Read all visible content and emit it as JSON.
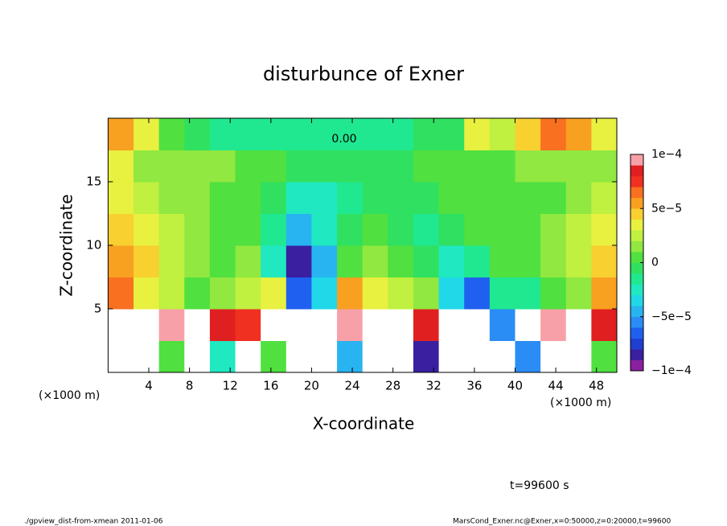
{
  "chart_data": {
    "type": "contour",
    "title": "disturbunce of Exner",
    "x_label": "X-coordinate",
    "y_label": "Z-coordinate",
    "x_unit": "(×1000 m)",
    "time_label": "t=99600 s",
    "footer_left": "./gpview_dist-from-xmean  2011-01-06",
    "footer_right": "MarsCond_Exner.nc@Exner,x=0:50000,z=0:20000,t=99600",
    "contour_label": "0.00",
    "xlim": [
      0,
      50
    ],
    "ylim": [
      0,
      20
    ],
    "xticks": [
      4,
      8,
      12,
      16,
      20,
      24,
      28,
      32,
      36,
      40,
      44,
      48
    ],
    "yticks": [
      5,
      10,
      15
    ],
    "z": [
      [
        0.0002,
        0.0002,
        0,
        0.0002,
        -3e-05,
        0.0002,
        0,
        0.0002,
        0.0002,
        -5e-05,
        0.0002,
        0.0002,
        -8e-05,
        0.0002,
        0.0002,
        0.0002,
        -6e-05,
        0.0002,
        0.0002,
        0
      ],
      [
        0.0002,
        0.0002,
        9e-05,
        0.0002,
        8e-05,
        7e-05,
        0.0002,
        0.0002,
        0.0002,
        9e-05,
        0.0002,
        0.0002,
        8e-05,
        0.0002,
        0.0002,
        -6e-05,
        0.0002,
        9e-05,
        0.0002,
        8e-05
      ],
      [
        6e-05,
        3e-05,
        2e-05,
        0,
        1e-05,
        2e-05,
        3e-05,
        -7e-05,
        -4e-05,
        5e-05,
        3e-05,
        2e-05,
        1e-05,
        -4e-05,
        -7e-05,
        -2e-05,
        -2e-05,
        0,
        1e-05,
        5e-05
      ],
      [
        5e-05,
        4e-05,
        2e-05,
        1e-05,
        0,
        1e-05,
        -3e-05,
        -8e-05,
        -5e-05,
        0,
        1e-05,
        0,
        -1e-05,
        -3e-05,
        -2e-05,
        0,
        0,
        1e-05,
        2e-05,
        4e-05
      ],
      [
        4e-05,
        3e-05,
        2e-05,
        1e-05,
        0,
        0,
        -2e-05,
        -5e-05,
        -3e-05,
        -1e-05,
        0,
        -1e-05,
        -2e-05,
        -1e-05,
        0,
        0,
        0,
        1e-05,
        2e-05,
        3e-05
      ],
      [
        3e-05,
        2e-05,
        1e-05,
        1e-05,
        0,
        0,
        -1e-05,
        -3e-05,
        -3e-05,
        -2e-05,
        -1e-05,
        -1e-05,
        -1e-05,
        0,
        0,
        0,
        0,
        0,
        1e-05,
        2e-05
      ],
      [
        3e-05,
        1e-05,
        1e-05,
        1e-05,
        1e-05,
        0,
        0,
        -1e-05,
        -1e-05,
        -1e-05,
        -1e-05,
        -1e-05,
        0,
        0,
        0,
        0,
        1e-05,
        1e-05,
        1e-05,
        1e-05
      ],
      [
        5e-05,
        3e-05,
        0,
        -1e-05,
        -2e-05,
        -2e-05,
        -2e-05,
        -2e-05,
        -2e-05,
        -2e-05,
        -2e-05,
        -2e-05,
        -1e-05,
        -1e-05,
        3e-05,
        2e-05,
        4e-05,
        6e-05,
        5e-05,
        3e-05
      ]
    ],
    "colorbar": {
      "lim": [
        -0.0001,
        0.0001
      ],
      "ticks": [
        {
          "value": -0.0001,
          "label": "−1e−4"
        },
        {
          "value": -5e-05,
          "label": "−5e−5"
        },
        {
          "value": 0,
          "label": "0"
        },
        {
          "value": 5e-05,
          "label": "5e−5"
        },
        {
          "value": 0.0001,
          "label": "1e−4"
        }
      ],
      "colors": [
        "#8a1fa0",
        "#3a1fa0",
        "#1f3fd0",
        "#2060f0",
        "#2a8cf5",
        "#28b4f0",
        "#20d8e8",
        "#20e8c0",
        "#20e890",
        "#30e060",
        "#50e040",
        "#90e840",
        "#c0f040",
        "#e8f040",
        "#f8d030",
        "#f8a020",
        "#f87020",
        "#f03020",
        "#e02020",
        "#f8a0a8"
      ],
      "over_color": "#ffffff"
    }
  }
}
